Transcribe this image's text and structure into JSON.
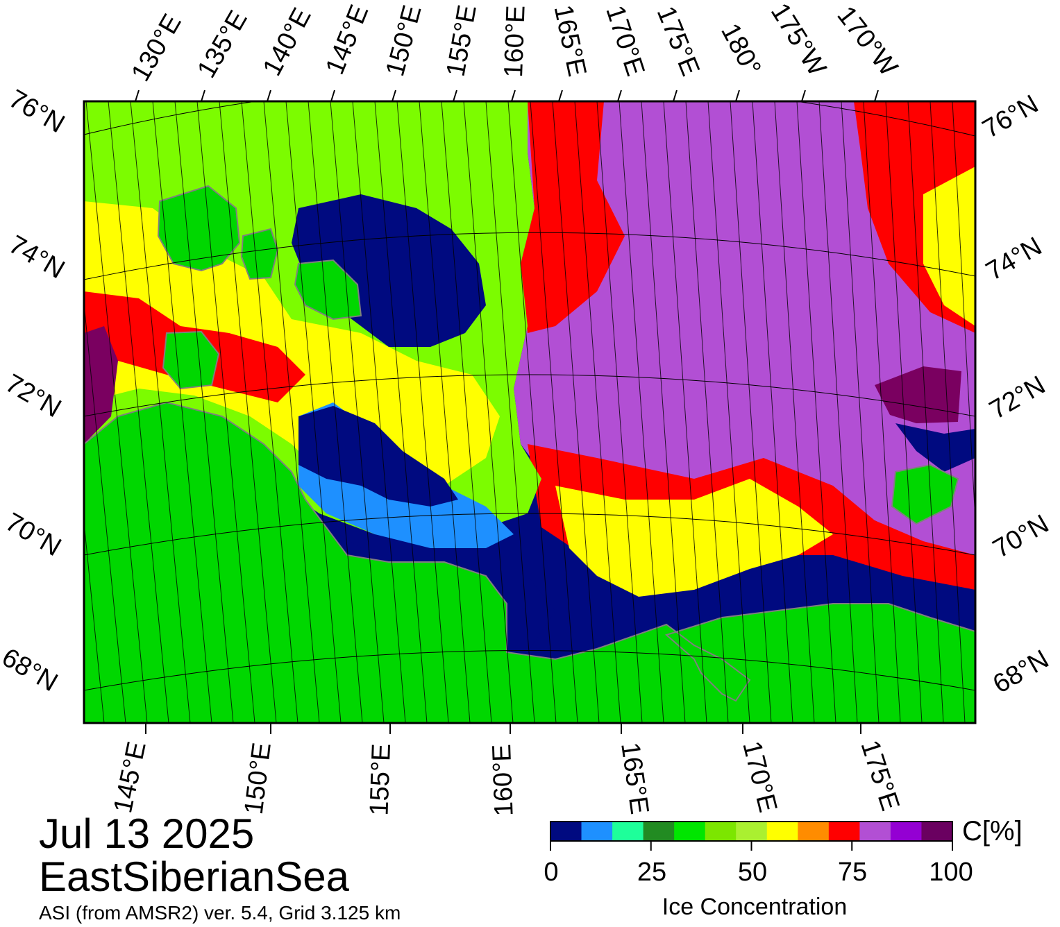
{
  "map": {
    "colors": {
      "open_water": "#000a80",
      "land": "#00d700",
      "land_edge": "#7f7f7f",
      "ice_low": "#1e90ff",
      "ice_mid": "#7cfc00",
      "ice_high": "#ffff00",
      "ice_very_high": "#ff0000",
      "ice_full": "#b24fd4",
      "ice_max": "#7a0060",
      "grid": "#000000"
    },
    "lon_labels_top": [
      "130°E",
      "135°E",
      "140°E",
      "145°E",
      "150°E",
      "155°E",
      "160°E",
      "165°E",
      "170°E",
      "175°E",
      "180°",
      "175°W",
      "170°W"
    ],
    "lat_labels_left": [
      "76°N",
      "74°N",
      "72°N",
      "70°N",
      "68°N"
    ],
    "lat_labels_right": [
      "76°N",
      "74°N",
      "72°N",
      "70°N",
      "68°N"
    ],
    "lon_labels_bottom": [
      "145°E",
      "150°E",
      "155°E",
      "160°E",
      "165°E",
      "170°E",
      "175°E"
    ]
  },
  "footer": {
    "date": "Jul 13 2025",
    "region": "EastSiberianSea",
    "product": "ASI (from AMSR2) ver. 5.4,  Grid 3.125 km"
  },
  "colorbar": {
    "colors": [
      "#000a80",
      "#1e90ff",
      "#1eff9a",
      "#228b22",
      "#00e600",
      "#7ce600",
      "#aaf030",
      "#ffff00",
      "#ff8c00",
      "#ff0000",
      "#b24fd4",
      "#9400d3",
      "#6a0060"
    ],
    "ticks": [
      "0",
      "25",
      "50",
      "75",
      "100"
    ],
    "unit": "C[%]",
    "title": "Ice Concentration"
  }
}
